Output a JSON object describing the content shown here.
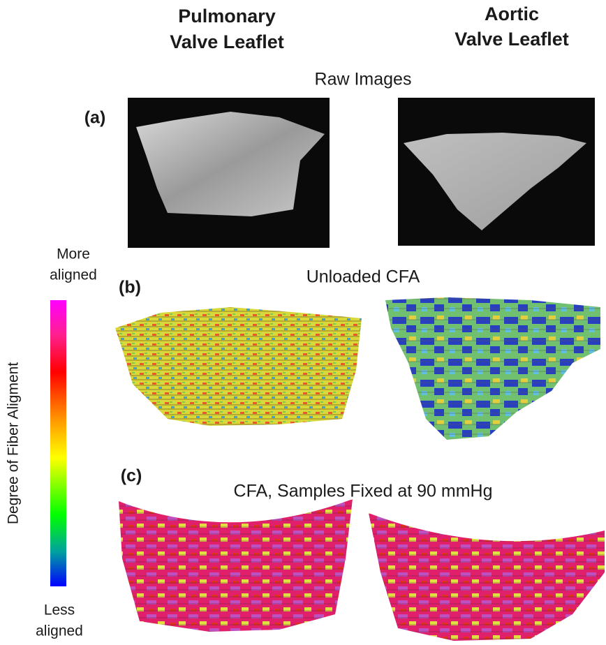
{
  "columns": [
    {
      "lines": [
        "Pulmonary",
        "Valve Leaflet"
      ]
    },
    {
      "lines": [
        "Aortic",
        "Valve Leaflet"
      ]
    }
  ],
  "panels": [
    {
      "label": "(a)",
      "title": "Raw Images"
    },
    {
      "label": "(b)",
      "title": "Unloaded CFA"
    },
    {
      "label": "(c)",
      "title": "CFA, Samples Fixed at 90 mmHg"
    }
  ],
  "colorbar": {
    "axis_label": "Degree of Fiber Aligment",
    "top_label": [
      "More",
      "aligned"
    ],
    "bottom_label": [
      "Less",
      "aligned"
    ]
  }
}
